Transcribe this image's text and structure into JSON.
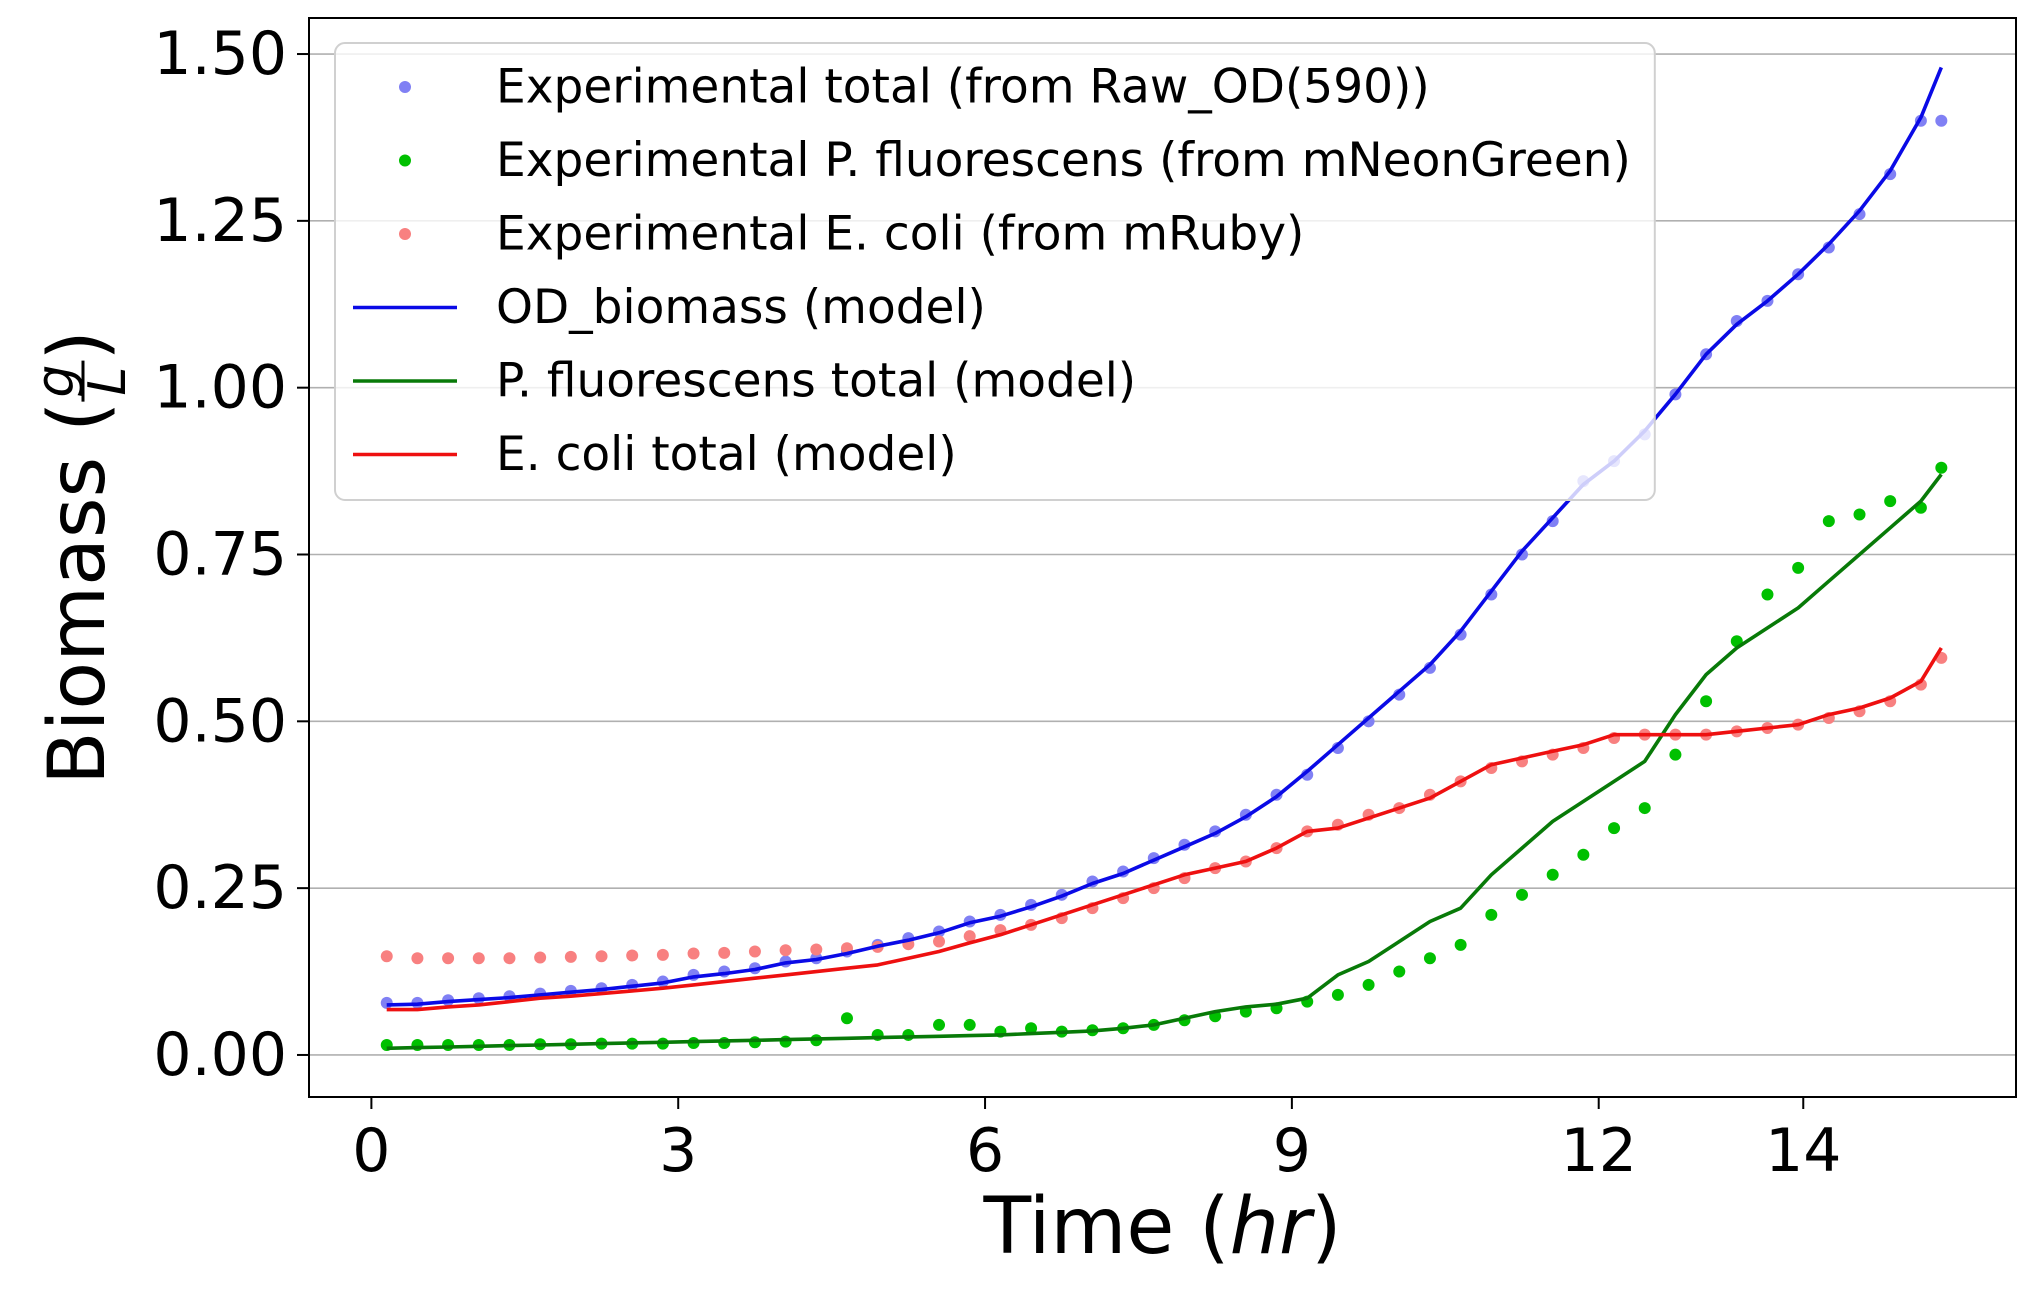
{
  "chart_data": {
    "type": "line",
    "xlabel": [
      "Time (",
      "hr",
      ")"
    ],
    "ylabel": [
      "Biomass (",
      "g",
      "L",
      ")"
    ],
    "x": [
      0.15,
      0.45,
      0.75,
      1.05,
      1.35,
      1.65,
      1.95,
      2.25,
      2.55,
      2.85,
      3.15,
      3.45,
      3.75,
      4.05,
      4.35,
      4.65,
      4.95,
      5.25,
      5.55,
      5.85,
      6.15,
      6.45,
      6.75,
      7.05,
      7.35,
      7.65,
      7.95,
      8.25,
      8.55,
      8.85,
      9.15,
      9.45,
      9.75,
      10.05,
      10.35,
      10.65,
      10.95,
      11.25,
      11.55,
      11.85,
      12.15,
      12.45,
      12.75,
      13.05,
      13.35,
      13.65,
      13.95,
      14.25,
      14.55,
      14.85,
      15.15,
      15.35
    ],
    "xlim": [
      -0.61,
      16.08
    ],
    "xticks": [
      0,
      3,
      6,
      9,
      12,
      14
    ],
    "ylim": [
      -0.063,
      1.554
    ],
    "yticks": [
      {
        "value": 0,
        "label": "0.00"
      },
      {
        "value": 0.25,
        "label": "0.25"
      },
      {
        "value": 0.5,
        "label": "0.50"
      },
      {
        "value": 0.75,
        "label": "0.75"
      },
      {
        "value": 1,
        "label": "1.00"
      },
      {
        "value": 1.25,
        "label": "1.25"
      },
      {
        "value": 1.5,
        "label": "1.50"
      }
    ],
    "grid": "y",
    "legend": "upper left",
    "series": [
      {
        "name": "Experimental total (from Raw_OD(590))",
        "mark": "scatter",
        "color": "#8080f4",
        "values": [
          0.078,
          0.078,
          0.082,
          0.085,
          0.088,
          0.092,
          0.096,
          0.1,
          0.105,
          0.11,
          0.12,
          0.125,
          0.13,
          0.14,
          0.145,
          0.155,
          0.165,
          0.175,
          0.185,
          0.2,
          0.21,
          0.225,
          0.24,
          0.26,
          0.275,
          0.295,
          0.315,
          0.335,
          0.36,
          0.39,
          0.42,
          0.46,
          0.5,
          0.54,
          0.58,
          0.63,
          0.69,
          0.75,
          0.8,
          0.86,
          0.89,
          0.93,
          0.99,
          1.05,
          1.1,
          1.13,
          1.17,
          1.21,
          1.26,
          1.32,
          1.4,
          1.4
        ]
      },
      {
        "name": "Experimental P. fluorescens (from mNeonGreen)",
        "mark": "scatter",
        "color": "#00c000",
        "values": [
          0.015,
          0.015,
          0.015,
          0.015,
          0.015,
          0.016,
          0.016,
          0.017,
          0.017,
          0.017,
          0.018,
          0.018,
          0.019,
          0.02,
          0.022,
          0.055,
          0.03,
          0.03,
          0.045,
          0.045,
          0.035,
          0.04,
          0.035,
          0.037,
          0.04,
          0.045,
          0.052,
          0.058,
          0.065,
          0.07,
          0.08,
          0.09,
          0.105,
          0.125,
          0.145,
          0.165,
          0.21,
          0.24,
          0.27,
          0.3,
          0.34,
          0.37,
          0.45,
          0.53,
          0.62,
          0.69,
          0.73,
          0.8,
          0.81,
          0.83,
          0.82,
          0.88
        ]
      },
      {
        "name": "Experimental E. coli (from mRuby)",
        "mark": "scatter",
        "color": "#f88080",
        "values": [
          0.148,
          0.145,
          0.145,
          0.145,
          0.145,
          0.146,
          0.147,
          0.148,
          0.149,
          0.15,
          0.152,
          0.153,
          0.155,
          0.157,
          0.158,
          0.16,
          0.162,
          0.166,
          0.17,
          0.178,
          0.187,
          0.195,
          0.205,
          0.22,
          0.235,
          0.25,
          0.265,
          0.28,
          0.29,
          0.31,
          0.335,
          0.345,
          0.36,
          0.37,
          0.39,
          0.41,
          0.43,
          0.44,
          0.45,
          0.46,
          0.475,
          0.48,
          0.48,
          0.48,
          0.485,
          0.49,
          0.495,
          0.505,
          0.515,
          0.53,
          0.555,
          0.595
        ]
      },
      {
        "name": "OD_biomass (model)",
        "mark": "line",
        "color": "#0a0ae6",
        "values": [
          0.075,
          0.076,
          0.08,
          0.083,
          0.086,
          0.09,
          0.094,
          0.098,
          0.103,
          0.108,
          0.117,
          0.122,
          0.128,
          0.138,
          0.143,
          0.152,
          0.163,
          0.172,
          0.183,
          0.198,
          0.208,
          0.222,
          0.238,
          0.257,
          0.272,
          0.292,
          0.312,
          0.332,
          0.357,
          0.387,
          0.425,
          0.465,
          0.505,
          0.545,
          0.585,
          0.635,
          0.695,
          0.755,
          0.805,
          0.855,
          0.89,
          0.935,
          0.99,
          1.05,
          1.095,
          1.13,
          1.17,
          1.215,
          1.265,
          1.325,
          1.405,
          1.48
        ]
      },
      {
        "name": "P. fluorescens total (model)",
        "mark": "line",
        "color": "#087a08",
        "values": [
          0.01,
          0.011,
          0.012,
          0.013,
          0.014,
          0.015,
          0.016,
          0.017,
          0.018,
          0.019,
          0.02,
          0.021,
          0.022,
          0.023,
          0.024,
          0.025,
          0.026,
          0.027,
          0.028,
          0.029,
          0.03,
          0.032,
          0.034,
          0.036,
          0.04,
          0.045,
          0.055,
          0.065,
          0.072,
          0.076,
          0.085,
          0.12,
          0.14,
          0.17,
          0.2,
          0.22,
          0.27,
          0.31,
          0.35,
          0.38,
          0.41,
          0.44,
          0.51,
          0.57,
          0.61,
          0.64,
          0.67,
          0.71,
          0.75,
          0.79,
          0.83,
          0.87
        ]
      },
      {
        "name": "E. coli total (model)",
        "mark": "line",
        "color": "#ee1010",
        "values": [
          0.068,
          0.068,
          0.072,
          0.075,
          0.08,
          0.085,
          0.088,
          0.092,
          0.096,
          0.1,
          0.105,
          0.11,
          0.115,
          0.12,
          0.125,
          0.13,
          0.135,
          0.145,
          0.155,
          0.168,
          0.18,
          0.195,
          0.21,
          0.225,
          0.24,
          0.255,
          0.27,
          0.28,
          0.29,
          0.31,
          0.335,
          0.34,
          0.355,
          0.37,
          0.385,
          0.41,
          0.435,
          0.445,
          0.455,
          0.465,
          0.48,
          0.48,
          0.48,
          0.48,
          0.485,
          0.49,
          0.495,
          0.51,
          0.52,
          0.535,
          0.56,
          0.61
        ]
      }
    ]
  }
}
